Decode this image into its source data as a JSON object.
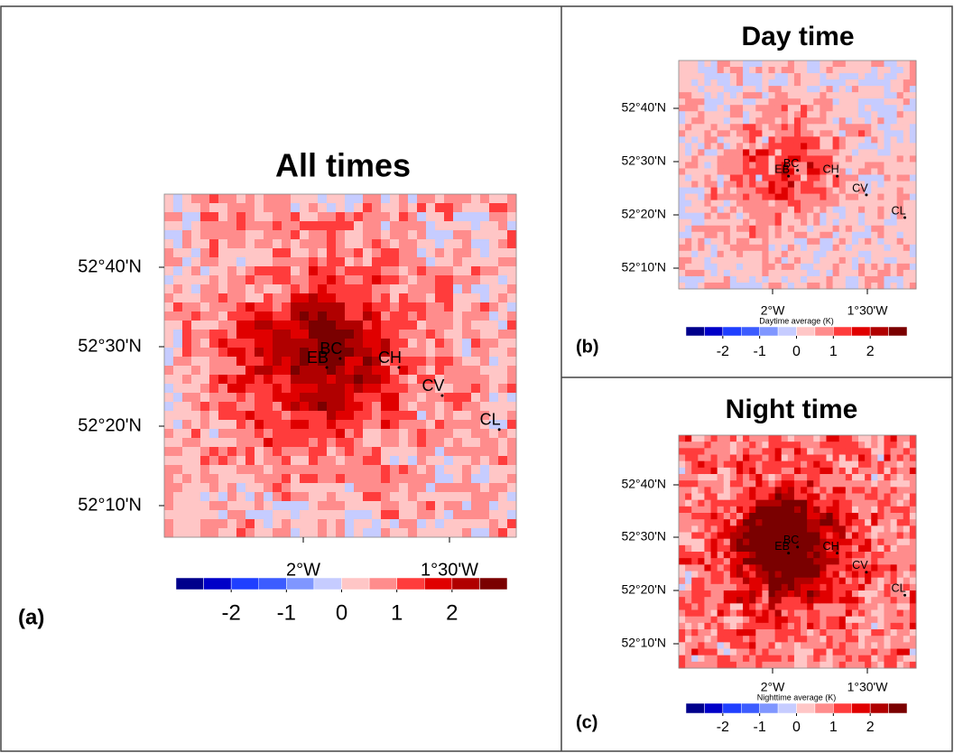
{
  "colorbar": {
    "lim": [
      -3,
      3
    ],
    "colors": [
      "#00008b",
      "#0000c8",
      "#1f3fff",
      "#3c5cff",
      "#7f96ff",
      "#c6ccff",
      "#ffc6c6",
      "#ff8c8c",
      "#ff3c3c",
      "#e00000",
      "#b00000",
      "#7a0000"
    ]
  },
  "panels": [
    {
      "label": "(a)",
      "title": "All times",
      "lat_labels": [
        "52°40'N",
        "52°30'N",
        "52°20'N",
        "52°10'N"
      ],
      "lon_labels": [
        "2°W",
        "1°30'W"
      ],
      "stations": [
        "EB",
        "BC",
        "CH",
        "CV",
        "CL"
      ],
      "colorbar_ticks": [
        -2,
        -1,
        0,
        1,
        2
      ]
    },
    {
      "label": "(b)",
      "title": "Day time",
      "colorbar_title": "Daytime average (K)",
      "lat_labels": [
        "52°40'N",
        "52°30'N",
        "52°20'N",
        "52°10'N"
      ],
      "lon_labels": [
        "2°W",
        "1°30'W"
      ],
      "stations": [
        "EB",
        "BC",
        "CH",
        "CV",
        "CL"
      ],
      "colorbar_ticks": [
        -2,
        -1,
        0,
        1,
        2
      ]
    },
    {
      "label": "(c)",
      "title": "Night time",
      "colorbar_title": "Nighttime average (K)",
      "lat_labels": [
        "52°40'N",
        "52°30'N",
        "52°20'N",
        "52°10'N"
      ],
      "lon_labels": [
        "2°W",
        "1°30'W"
      ],
      "stations": [
        "EB",
        "BC",
        "CH",
        "CV",
        "CL"
      ],
      "colorbar_ticks": [
        -2,
        -1,
        0,
        1,
        2
      ]
    }
  ]
}
